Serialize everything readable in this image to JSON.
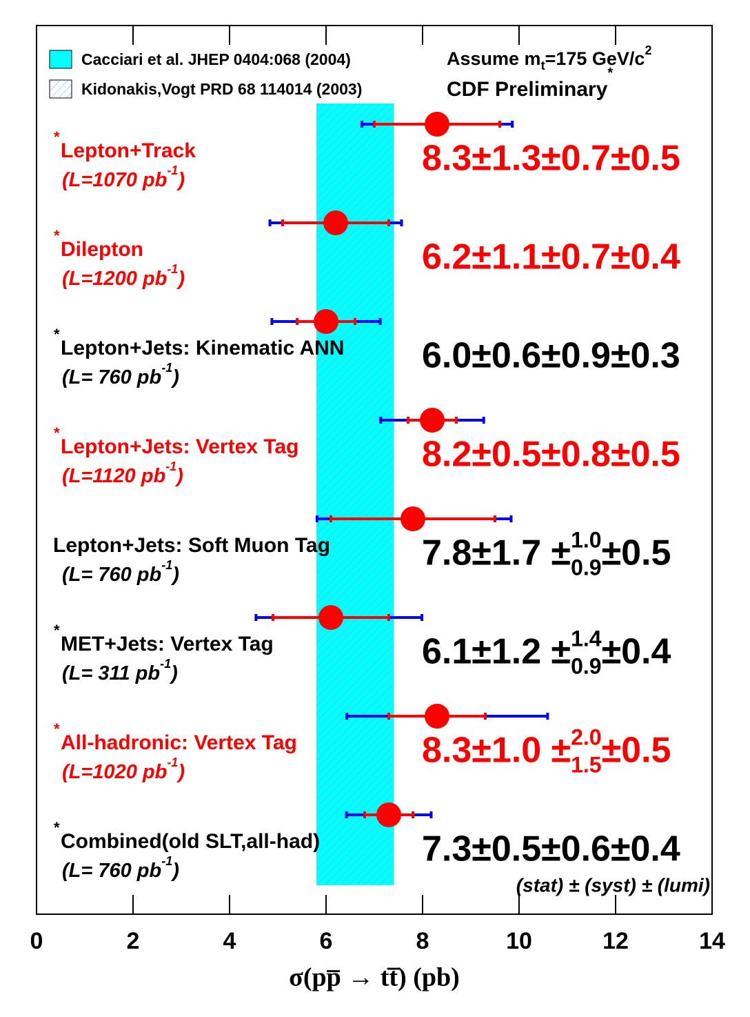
{
  "chart_data": {
    "type": "errorbar",
    "xlabel": "σ(pp̅ → tt̅) (pb)",
    "xlim": [
      0,
      14
    ],
    "xticks": [
      0,
      2,
      4,
      6,
      8,
      10,
      12,
      14
    ],
    "stat_color": "#ff0000",
    "total_color": "#0000ff",
    "marker_color": "#ff0000",
    "bands": [
      {
        "name": "Cacciari et al. JHEP 0404:068 (2004)",
        "color": "#00ffff",
        "range": [
          5.8,
          7.4
        ]
      },
      {
        "name": "Kidonakis,Vogt PRD 68 114014 (2003)",
        "hatch": true,
        "range": [
          5.8,
          7.4
        ]
      }
    ],
    "assumption": {
      "text": "Assume m",
      "sub": "t",
      "rest": "=175 GeV/c",
      "sup": "2"
    },
    "preliminary": {
      "text": "CDF Preliminary",
      "sup": "*"
    },
    "footnote": "(stat) ± (syst) ± (lumi)",
    "measurements": [
      {
        "star": "*",
        "name": "Lepton+Track",
        "luminosity": [
          "(L=1070 pb",
          "-1",
          ")"
        ],
        "color": "#ff0000",
        "value": 8.3,
        "stat": 1.3,
        "syst": 0.7,
        "lumi": 0.5,
        "result_label": "8.3±1.3±0.7±0.5"
      },
      {
        "star": "*",
        "name": "Dilepton",
        "luminosity": [
          "(L=1200 pb",
          "-1",
          ")"
        ],
        "color": "#ff0000",
        "value": 6.2,
        "stat": 1.1,
        "syst": 0.7,
        "lumi": 0.4,
        "result_label": "6.2±1.1±0.7±0.4"
      },
      {
        "star": "*",
        "name": "Lepton+Jets: Kinematic ANN",
        "luminosity": [
          "(L= 760 pb",
          "-1",
          ")"
        ],
        "color": "#000000",
        "value": 6.0,
        "stat": 0.6,
        "syst": 0.9,
        "lumi": 0.3,
        "result_label": "6.0±0.6±0.9±0.3"
      },
      {
        "star": "*",
        "name": "Lepton+Jets: Vertex Tag",
        "luminosity": [
          "(L=1120 pb",
          "-1",
          ")"
        ],
        "color": "#ff0000",
        "value": 8.2,
        "stat": 0.5,
        "syst": 0.8,
        "lumi": 0.5,
        "result_label": "8.2±0.5±0.8±0.5"
      },
      {
        "name": "Lepton+Jets: Soft Muon Tag",
        "luminosity": [
          "(L= 760 pb",
          "-1",
          ")"
        ],
        "color": "#000000",
        "value": 7.8,
        "stat": 1.7,
        "syst_up": 1.0,
        "syst_down": 0.9,
        "lumi": 0.5,
        "result_label": [
          "7.8±1.7 ±",
          "1.0",
          "0.9",
          "±0.5"
        ]
      },
      {
        "star": "*",
        "name": "MET+Jets: Vertex Tag",
        "luminosity": [
          "(L= 311 pb",
          "-1",
          ")"
        ],
        "color": "#000000",
        "value": 6.1,
        "stat": 1.2,
        "syst_up": 1.4,
        "syst_down": 0.9,
        "lumi": 0.4,
        "result_label": [
          "6.1±1.2 ±",
          "1.4",
          "0.9",
          "±0.4"
        ]
      },
      {
        "star": "*",
        "name": "All-hadronic: Vertex Tag",
        "luminosity": [
          "(L=1020 pb",
          "-1",
          ")"
        ],
        "color": "#ff0000",
        "value": 8.3,
        "stat": 1.0,
        "syst_up": 2.0,
        "syst_down": 1.5,
        "lumi": 0.5,
        "result_label": [
          "8.3±1.0 ±",
          "2.0",
          "1.5",
          "±0.5"
        ]
      },
      {
        "star": "*",
        "name": "Combined(old SLT,all-had)",
        "luminosity": [
          "(L= 760 pb",
          "-1",
          ")"
        ],
        "color": "#000000",
        "value": 7.3,
        "stat": 0.5,
        "syst": 0.6,
        "lumi": 0.4,
        "result_label": "7.3±0.5±0.6±0.4"
      }
    ]
  }
}
